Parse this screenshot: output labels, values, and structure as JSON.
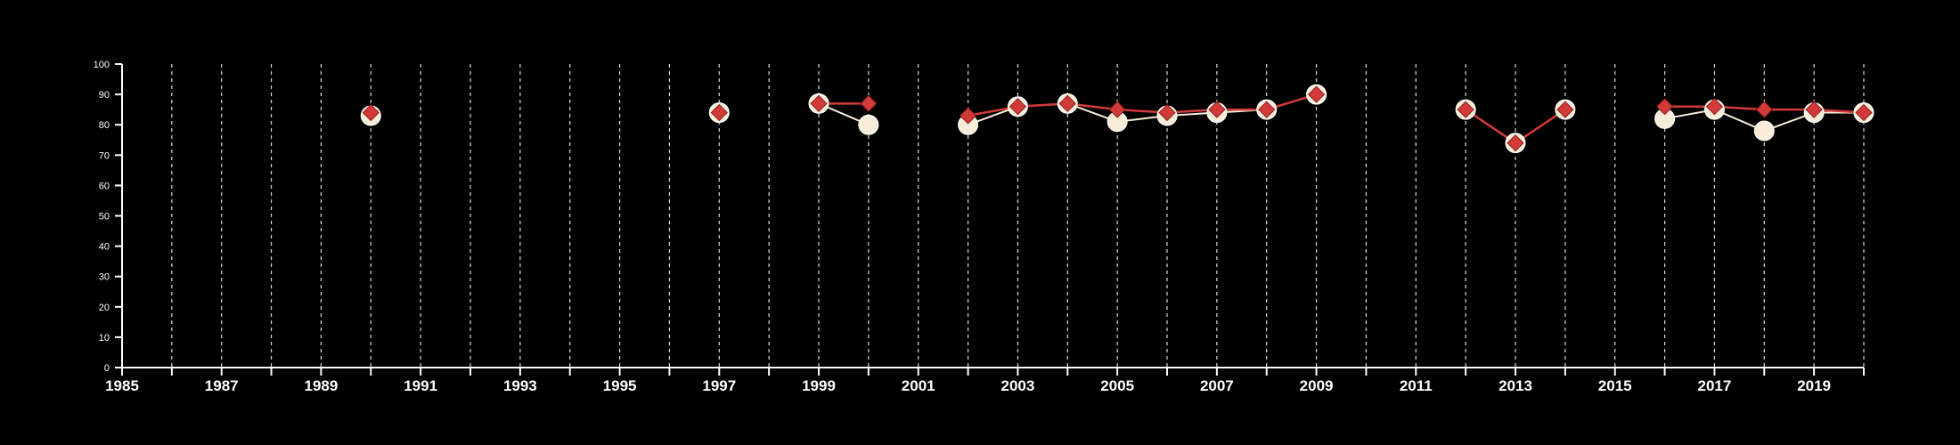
{
  "chart_data": {
    "type": "line",
    "title": "",
    "xlabel": "",
    "ylabel": "",
    "xlim": [
      1985,
      2020
    ],
    "ylim": [
      0,
      100
    ],
    "y_ticks": [
      "0",
      "10",
      "20",
      "30",
      "40",
      "50",
      "60",
      "70",
      "80",
      "90",
      "100"
    ],
    "x_tick_labels": [
      "1985",
      "1987",
      "1989",
      "1991",
      "1993",
      "1995",
      "1997",
      "1999",
      "2001",
      "2003",
      "2005",
      "2007",
      "2009",
      "2011",
      "2013",
      "2015",
      "2017",
      "2019"
    ],
    "grid": "vertical dashed lines at every year",
    "legend": "none",
    "colors": {
      "background": "#000000",
      "axis": "#ffffff",
      "grid": "#d9d9d9",
      "series_circle": "#f6ecd8",
      "series_diamond": "#d23a3a"
    },
    "series": [
      {
        "marker": "circle",
        "color": "#f6ecd8",
        "x": [
          1990,
          1997,
          1999,
          2000,
          2002,
          2003,
          2004,
          2005,
          2006,
          2007,
          2008,
          2009,
          2012,
          2013,
          2014,
          2016,
          2017,
          2018,
          2019,
          2020
        ],
        "y": [
          83,
          84,
          87,
          80,
          80,
          86,
          87,
          81,
          83,
          84,
          85,
          90,
          85,
          74,
          85,
          82,
          85,
          78,
          84,
          84
        ]
      },
      {
        "marker": "diamond",
        "color": "#d23a3a",
        "x": [
          1990,
          1997,
          1999,
          2000,
          2002,
          2003,
          2004,
          2005,
          2006,
          2007,
          2008,
          2009,
          2012,
          2013,
          2014,
          2016,
          2017,
          2018,
          2019,
          2020
        ],
        "y": [
          84,
          84,
          87,
          87,
          83,
          86,
          87,
          85,
          84,
          85,
          85,
          90,
          85,
          74,
          85,
          86,
          86,
          85,
          85,
          84
        ]
      }
    ]
  }
}
